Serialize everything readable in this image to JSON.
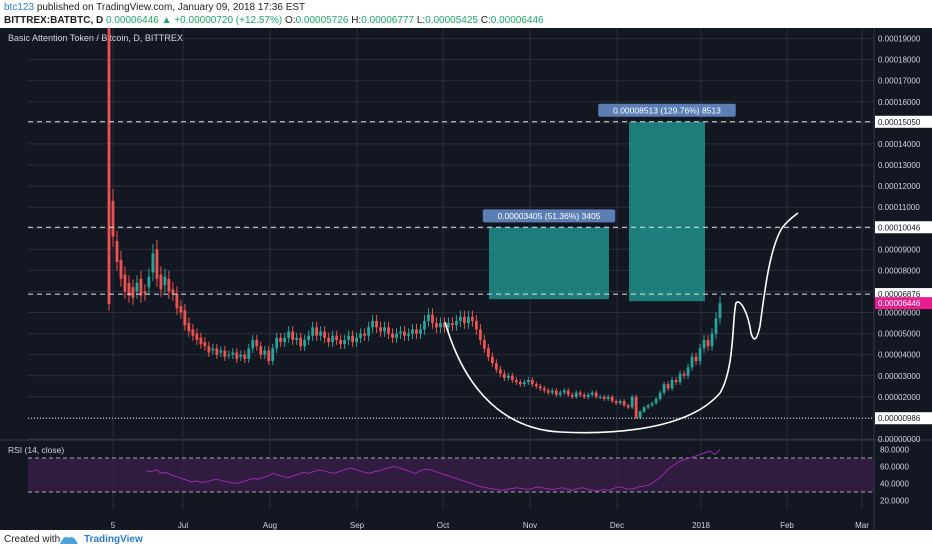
{
  "header": {
    "author": "btc123",
    "published_text": "published on TradingView.com, January 09, 2018 17:36 EST",
    "symbol": "BITTREX:BATBTC, D",
    "price": "0.00006446",
    "change": "+0.00000720 (+12.57%)",
    "o_label": "O:",
    "o_value": "0.00005726",
    "h_label": "H:",
    "h_value": "0.00006777",
    "l_label": "L:",
    "l_value": "0.00005425",
    "c_label": "C:",
    "c_value": "0.00006446"
  },
  "footer": {
    "created": "Created with",
    "brand": "TradingView"
  },
  "colors": {
    "background": "#131722",
    "grid": "#2a2e39",
    "up": "#26a69a",
    "down": "#ef5350",
    "box": "#1f8f8a",
    "price_marker": "#e91e8c",
    "rsi": "#9c27b0",
    "rsi_band": "#3b1f4a"
  },
  "chart_data": {
    "type": "candlestick",
    "title": "Basic Attention Token / Bitcoin, D, BITTREX",
    "x_tick_labels": [
      "5",
      "Jul",
      "Aug",
      "Sep",
      "Oct",
      "Nov",
      "Dec",
      "2018",
      "Feb",
      "Mar"
    ],
    "y_tick_labels": [
      "0.00019000",
      "0.00018000",
      "0.00017000",
      "0.00016000",
      "0.00015000",
      "0.00014000",
      "0.00013000",
      "0.00012000",
      "0.00011000",
      "0.00010000",
      "0.00009000",
      "0.00008000",
      "0.00007000",
      "0.00006000",
      "0.00005000",
      "0.00004000",
      "0.00003000",
      "0.00002000",
      "0.00001000",
      "0.00000000"
    ],
    "ylim": [
      0,
      0.000195
    ],
    "grid": true,
    "last_price": "0.00006446",
    "level_lines": [
      {
        "value": 0.0001505,
        "label": "0.00015050"
      },
      {
        "value": 0.00010046,
        "label": "0.00010046"
      },
      {
        "value": 6.876e-05,
        "label": "0.00006876"
      },
      {
        "value": 9.86e-06,
        "label": "0.00000986"
      }
    ],
    "range_boxes": [
      {
        "label": "0.00003405 (51.36%) 3405",
        "from": 6.635e-05,
        "to": 0.0001004
      },
      {
        "label": "0.00008513 (129.76%) 8513",
        "from": 6.537e-05,
        "to": 0.0001505
      }
    ],
    "annotation": "cup-and-handle",
    "candles": [
      [
        0.000195,
        6.4e-05
      ],
      [
        0.000113,
        9.6e-05
      ],
      [
        9.4e-05,
        8.4e-05
      ],
      [
        8.5e-05,
        7.6e-05
      ],
      [
        7.8e-05,
        7e-05
      ],
      [
        7.4e-05,
        6.8e-05
      ],
      [
        7.2e-05,
        6.7e-05
      ],
      [
        7e-05,
        7.4e-05
      ],
      [
        7.6e-05,
        6.8e-05
      ],
      [
        7e-05,
        6.9e-05
      ],
      [
        7.2e-05,
        7.7e-05
      ],
      [
        7.9e-05,
        8.8e-05
      ],
      [
        9e-05,
        7.6e-05
      ],
      [
        7.8e-05,
        7.1e-05
      ],
      [
        7.3e-05,
        7.7e-05
      ],
      [
        7.6e-05,
        7e-05
      ],
      [
        7.1e-05,
        6.9e-05
      ],
      [
        6.9e-05,
        6.2e-05
      ],
      [
        6.3e-05,
        6e-05
      ],
      [
        6.1e-05,
        5.4e-05
      ],
      [
        5.5e-05,
        5.1e-05
      ],
      [
        5.2e-05,
        4.9e-05
      ],
      [
        5e-05,
        4.7e-05
      ],
      [
        4.8e-05,
        4.5e-05
      ],
      [
        4.6e-05,
        4.4e-05
      ],
      [
        4.4e-05,
        4.1e-05
      ],
      [
        4.2e-05,
        4.3e-05
      ],
      [
        4.3e-05,
        4e-05
      ],
      [
        4.1e-05,
        4.2e-05
      ],
      [
        4.2e-05,
        3.9e-05
      ],
      [
        4e-05,
        4e-05
      ],
      [
        4e-05,
        4.1e-05
      ],
      [
        4.1e-05,
        3.8e-05
      ],
      [
        3.9e-05,
        4e-05
      ],
      [
        4e-05,
        3.8e-05
      ],
      [
        3.8e-05,
        4.3e-05
      ],
      [
        4.3e-05,
        4.7e-05
      ],
      [
        4.7e-05,
        4.4e-05
      ],
      [
        4.4e-05,
        4e-05
      ],
      [
        4e-05,
        4.2e-05
      ],
      [
        4.2e-05,
        3.7e-05
      ],
      [
        3.7e-05,
        4.3e-05
      ],
      [
        4.3e-05,
        4.8e-05
      ],
      [
        4.8e-05,
        4.6e-05
      ],
      [
        4.6e-05,
        4.8e-05
      ],
      [
        4.8e-05,
        5.1e-05
      ],
      [
        5.1e-05,
        4.7e-05
      ],
      [
        4.7e-05,
        4.8e-05
      ],
      [
        4.8e-05,
        4.4e-05
      ],
      [
        4.4e-05,
        4.7e-05
      ],
      [
        4.7e-05,
        4.9e-05
      ],
      [
        4.9e-05,
        5.3e-05
      ],
      [
        5.3e-05,
        4.9e-05
      ],
      [
        4.9e-05,
        5.1e-05
      ],
      [
        5.1e-05,
        4.8e-05
      ],
      [
        4.8e-05,
        4.6e-05
      ],
      [
        4.6e-05,
        4.9e-05
      ],
      [
        4.9e-05,
        4.7e-05
      ],
      [
        4.7e-05,
        4.5e-05
      ],
      [
        4.5e-05,
        4.7e-05
      ],
      [
        4.7e-05,
        4.9e-05
      ],
      [
        4.9e-05,
        4.6e-05
      ],
      [
        4.6e-05,
        4.8e-05
      ],
      [
        4.8e-05,
        5e-05
      ],
      [
        5e-05,
        4.9e-05
      ],
      [
        4.9e-05,
        5.3e-05
      ],
      [
        5.3e-05,
        5.6e-05
      ],
      [
        5.6e-05,
        5.3e-05
      ],
      [
        5.3e-05,
        5.1e-05
      ],
      [
        5.1e-05,
        5.3e-05
      ],
      [
        5.3e-05,
        5e-05
      ],
      [
        5e-05,
        4.8e-05
      ],
      [
        4.8e-05,
        5e-05
      ],
      [
        5e-05,
        5.1e-05
      ],
      [
        5.1e-05,
        4.9e-05
      ],
      [
        4.9e-05,
        5e-05
      ],
      [
        5e-05,
        5.2e-05
      ],
      [
        5.2e-05,
        5e-05
      ],
      [
        5e-05,
        5.2e-05
      ],
      [
        5.2e-05,
        5.6e-05
      ],
      [
        5.6e-05,
        5.9e-05
      ],
      [
        5.9e-05,
        5.5e-05
      ],
      [
        5.5e-05,
        5.3e-05
      ],
      [
        5.3e-05,
        5.5e-05
      ],
      [
        5.5e-05,
        5.3e-05
      ],
      [
        5.3e-05,
        5.5e-05
      ],
      [
        5.5e-05,
        5.4e-05
      ],
      [
        5.4e-05,
        5.6e-05
      ],
      [
        5.6e-05,
        5.8e-05
      ],
      [
        5.8e-05,
        5.5e-05
      ],
      [
        5.5e-05,
        5.8e-05
      ],
      [
        5.8e-05,
        5.6e-05
      ],
      [
        5.6e-05,
        5.2e-05
      ],
      [
        5.2e-05,
        4.7e-05
      ],
      [
        4.7e-05,
        4.3e-05
      ],
      [
        4.3e-05,
        3.9e-05
      ],
      [
        3.9e-05,
        3.6e-05
      ],
      [
        3.6e-05,
        3.3e-05
      ],
      [
        3.3e-05,
        3.1e-05
      ],
      [
        3.1e-05,
        2.9e-05
      ],
      [
        2.9e-05,
        3e-05
      ],
      [
        3e-05,
        2.8e-05
      ],
      [
        2.8e-05,
        2.7e-05
      ],
      [
        2.7e-05,
        2.6e-05
      ],
      [
        2.6e-05,
        2.7e-05
      ],
      [
        2.7e-05,
        2.8e-05
      ],
      [
        2.8e-05,
        2.6e-05
      ],
      [
        2.6e-05,
        2.5e-05
      ],
      [
        2.5e-05,
        2.4e-05
      ],
      [
        2.4e-05,
        2.3e-05
      ],
      [
        2.3e-05,
        2.2e-05
      ],
      [
        2.2e-05,
        2.3e-05
      ],
      [
        2.3e-05,
        2.1e-05
      ],
      [
        2.1e-05,
        2.2e-05
      ],
      [
        2.2e-05,
        2.3e-05
      ],
      [
        2.3e-05,
        2.1e-05
      ],
      [
        2.1e-05,
        2e-05
      ],
      [
        2e-05,
        2.2e-05
      ],
      [
        2.2e-05,
        2.1e-05
      ],
      [
        2.1e-05,
        2e-05
      ],
      [
        2e-05,
        2.1e-05
      ],
      [
        2.1e-05,
        2.2e-05
      ],
      [
        2.2e-05,
        2e-05
      ],
      [
        2e-05,
        2e-05
      ],
      [
        2e-05,
        1.9e-05
      ],
      [
        1.9e-05,
        2e-05
      ],
      [
        2e-05,
        1.8e-05
      ],
      [
        1.8e-05,
        1.7e-05
      ],
      [
        1.7e-05,
        1.8e-05
      ],
      [
        1.8e-05,
        1.6e-05
      ],
      [
        1.6e-05,
        1.5e-05
      ],
      [
        1.5e-05,
        2e-05
      ],
      [
        2e-05,
        1e-05
      ],
      [
        1e-05,
        1.3e-05
      ],
      [
        1.3e-05,
        1.5e-05
      ],
      [
        1.5e-05,
        1.6e-05
      ],
      [
        1.6e-05,
        1.7e-05
      ],
      [
        1.7e-05,
        1.9e-05
      ],
      [
        1.9e-05,
        2.2e-05
      ],
      [
        2.2e-05,
        2.6e-05
      ],
      [
        2.6e-05,
        2.4e-05
      ],
      [
        2.4e-05,
        2.8e-05
      ],
      [
        2.8e-05,
        2.7e-05
      ],
      [
        2.7e-05,
        3.1e-05
      ],
      [
        3.1e-05,
        3e-05
      ],
      [
        3e-05,
        3.4e-05
      ],
      [
        3.4e-05,
        3.9e-05
      ],
      [
        3.9e-05,
        3.7e-05
      ],
      [
        3.7e-05,
        4.3e-05
      ],
      [
        4.3e-05,
        4.7e-05
      ],
      [
        4.7e-05,
        4.4e-05
      ],
      [
        4.4e-05,
        5e-05
      ],
      [
        5e-05,
        5.726e-05
      ],
      [
        5.726e-05,
        6.446e-05
      ]
    ],
    "rsi": {
      "label": "RSI (14, close)",
      "y_tick_labels": [
        "80.0000",
        "60.0000",
        "40.0000",
        "20.0000"
      ],
      "ylim": [
        10,
        90
      ],
      "bands": [
        70,
        30
      ],
      "values": [
        55,
        54,
        56,
        52,
        53,
        50,
        48,
        46,
        44,
        42,
        43,
        41,
        42,
        44,
        45,
        43,
        42,
        41,
        40,
        42,
        44,
        46,
        45,
        47,
        49,
        52,
        50,
        48,
        47,
        49,
        51,
        53,
        52,
        54,
        56,
        55,
        53,
        52,
        54,
        56,
        58,
        57,
        55,
        53,
        52,
        54,
        55,
        57,
        59,
        60,
        58,
        56,
        54,
        52,
        55,
        57,
        56,
        54,
        52,
        50,
        48,
        46,
        44,
        42,
        40,
        38,
        36,
        35,
        34,
        33,
        32,
        33,
        34,
        35,
        34,
        33,
        34,
        36,
        35,
        34,
        33,
        34,
        35,
        33,
        32,
        34,
        35,
        33,
        32,
        31,
        33,
        32,
        34,
        36,
        35,
        33,
        34,
        36,
        37,
        38,
        42,
        46,
        52,
        58,
        62,
        66,
        68,
        70,
        72,
        74,
        76,
        78,
        74,
        80
      ]
    }
  }
}
